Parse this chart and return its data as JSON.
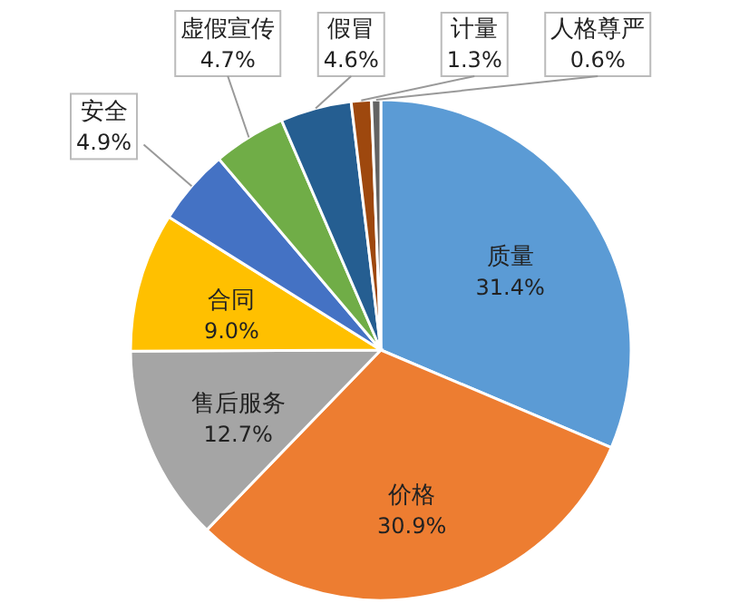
{
  "chart_data": {
    "type": "pie",
    "categories": [
      "质量",
      "价格",
      "售后服务",
      "合同",
      "安全",
      "虚假宣传",
      "假冒",
      "计量",
      "人格尊严"
    ],
    "values": [
      31.4,
      30.9,
      12.7,
      9.0,
      4.9,
      4.7,
      4.6,
      1.3,
      0.6
    ],
    "value_labels": [
      "31.4%",
      "30.9%",
      "12.7%",
      "9.0%",
      "4.9%",
      "4.7%",
      "4.6%",
      "1.3%",
      "0.6%"
    ],
    "colors": [
      "#5b9bd5",
      "#ed7d31",
      "#a5a5a5",
      "#ffc000",
      "#4472c4",
      "#70ad47",
      "#255e91",
      "#9e480e",
      "#636363"
    ]
  }
}
